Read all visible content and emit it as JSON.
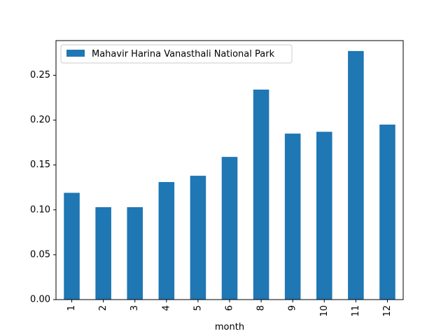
{
  "chart_data": {
    "type": "bar",
    "title": "",
    "xlabel": "month",
    "ylabel": "",
    "categories": [
      "1",
      "2",
      "3",
      "4",
      "5",
      "6",
      "8",
      "9",
      "10",
      "11",
      "12"
    ],
    "series": [
      {
        "name": "Mahavir Harina Vanasthali National Park",
        "color": "#1f77b4",
        "values": [
          0.119,
          0.103,
          0.103,
          0.131,
          0.138,
          0.159,
          0.234,
          0.185,
          0.187,
          0.277,
          0.195
        ]
      }
    ],
    "ylim": [
      0,
      0.2886
    ],
    "yticks": [
      0.0,
      0.05,
      0.1,
      0.15,
      0.2,
      0.25
    ],
    "ytick_labels": [
      "0.00",
      "0.05",
      "0.10",
      "0.15",
      "0.20",
      "0.25"
    ],
    "grid": false,
    "legend_position": "upper-left",
    "x_tick_rotation": "vertical"
  }
}
